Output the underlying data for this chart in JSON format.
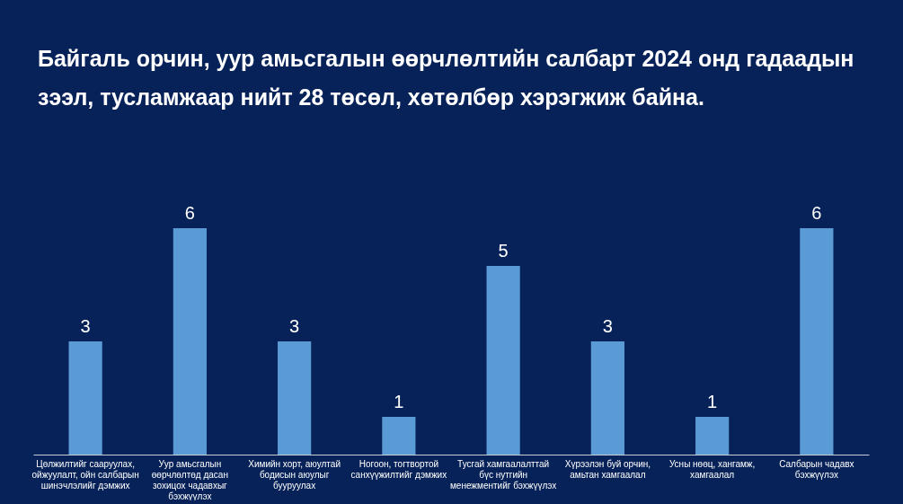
{
  "chart_data": {
    "type": "bar",
    "title": "Байгаль орчин, уур амьсгалын өөрчлөлтийн салбарт 2024 онд гадаадын зээл, тусламжаар нийт 28 төсөл, хөтөлбөр хэрэгжиж байна.",
    "categories": [
      "Цөлжилтийг сааруулах, ойжуулалт, ойн салбарын шинэчлэлийг дэмжих",
      "Уур амьсгалын өөрчлөлтөд дасан зохицох чадавхыг бэхжүүлэх",
      "Химийн хорт, аюултай бодисын аюулыг бууруулах",
      "Ногоон, тогтвортой санхүүжилтийг дэмжих",
      "Тусгай хамгаалалттай бүс нутгийн менежментийг бэхжүүлэх",
      "Хүрээлэн буй орчин, амьтан хамгаалал",
      "Усны нөөц, хангамж, хамгаалал",
      "Салбарын чадавх бэхжүүлэх"
    ],
    "values": [
      3,
      6,
      3,
      1,
      5,
      3,
      1,
      6
    ],
    "color": "#5b9bd5",
    "data_labels": true
  }
}
